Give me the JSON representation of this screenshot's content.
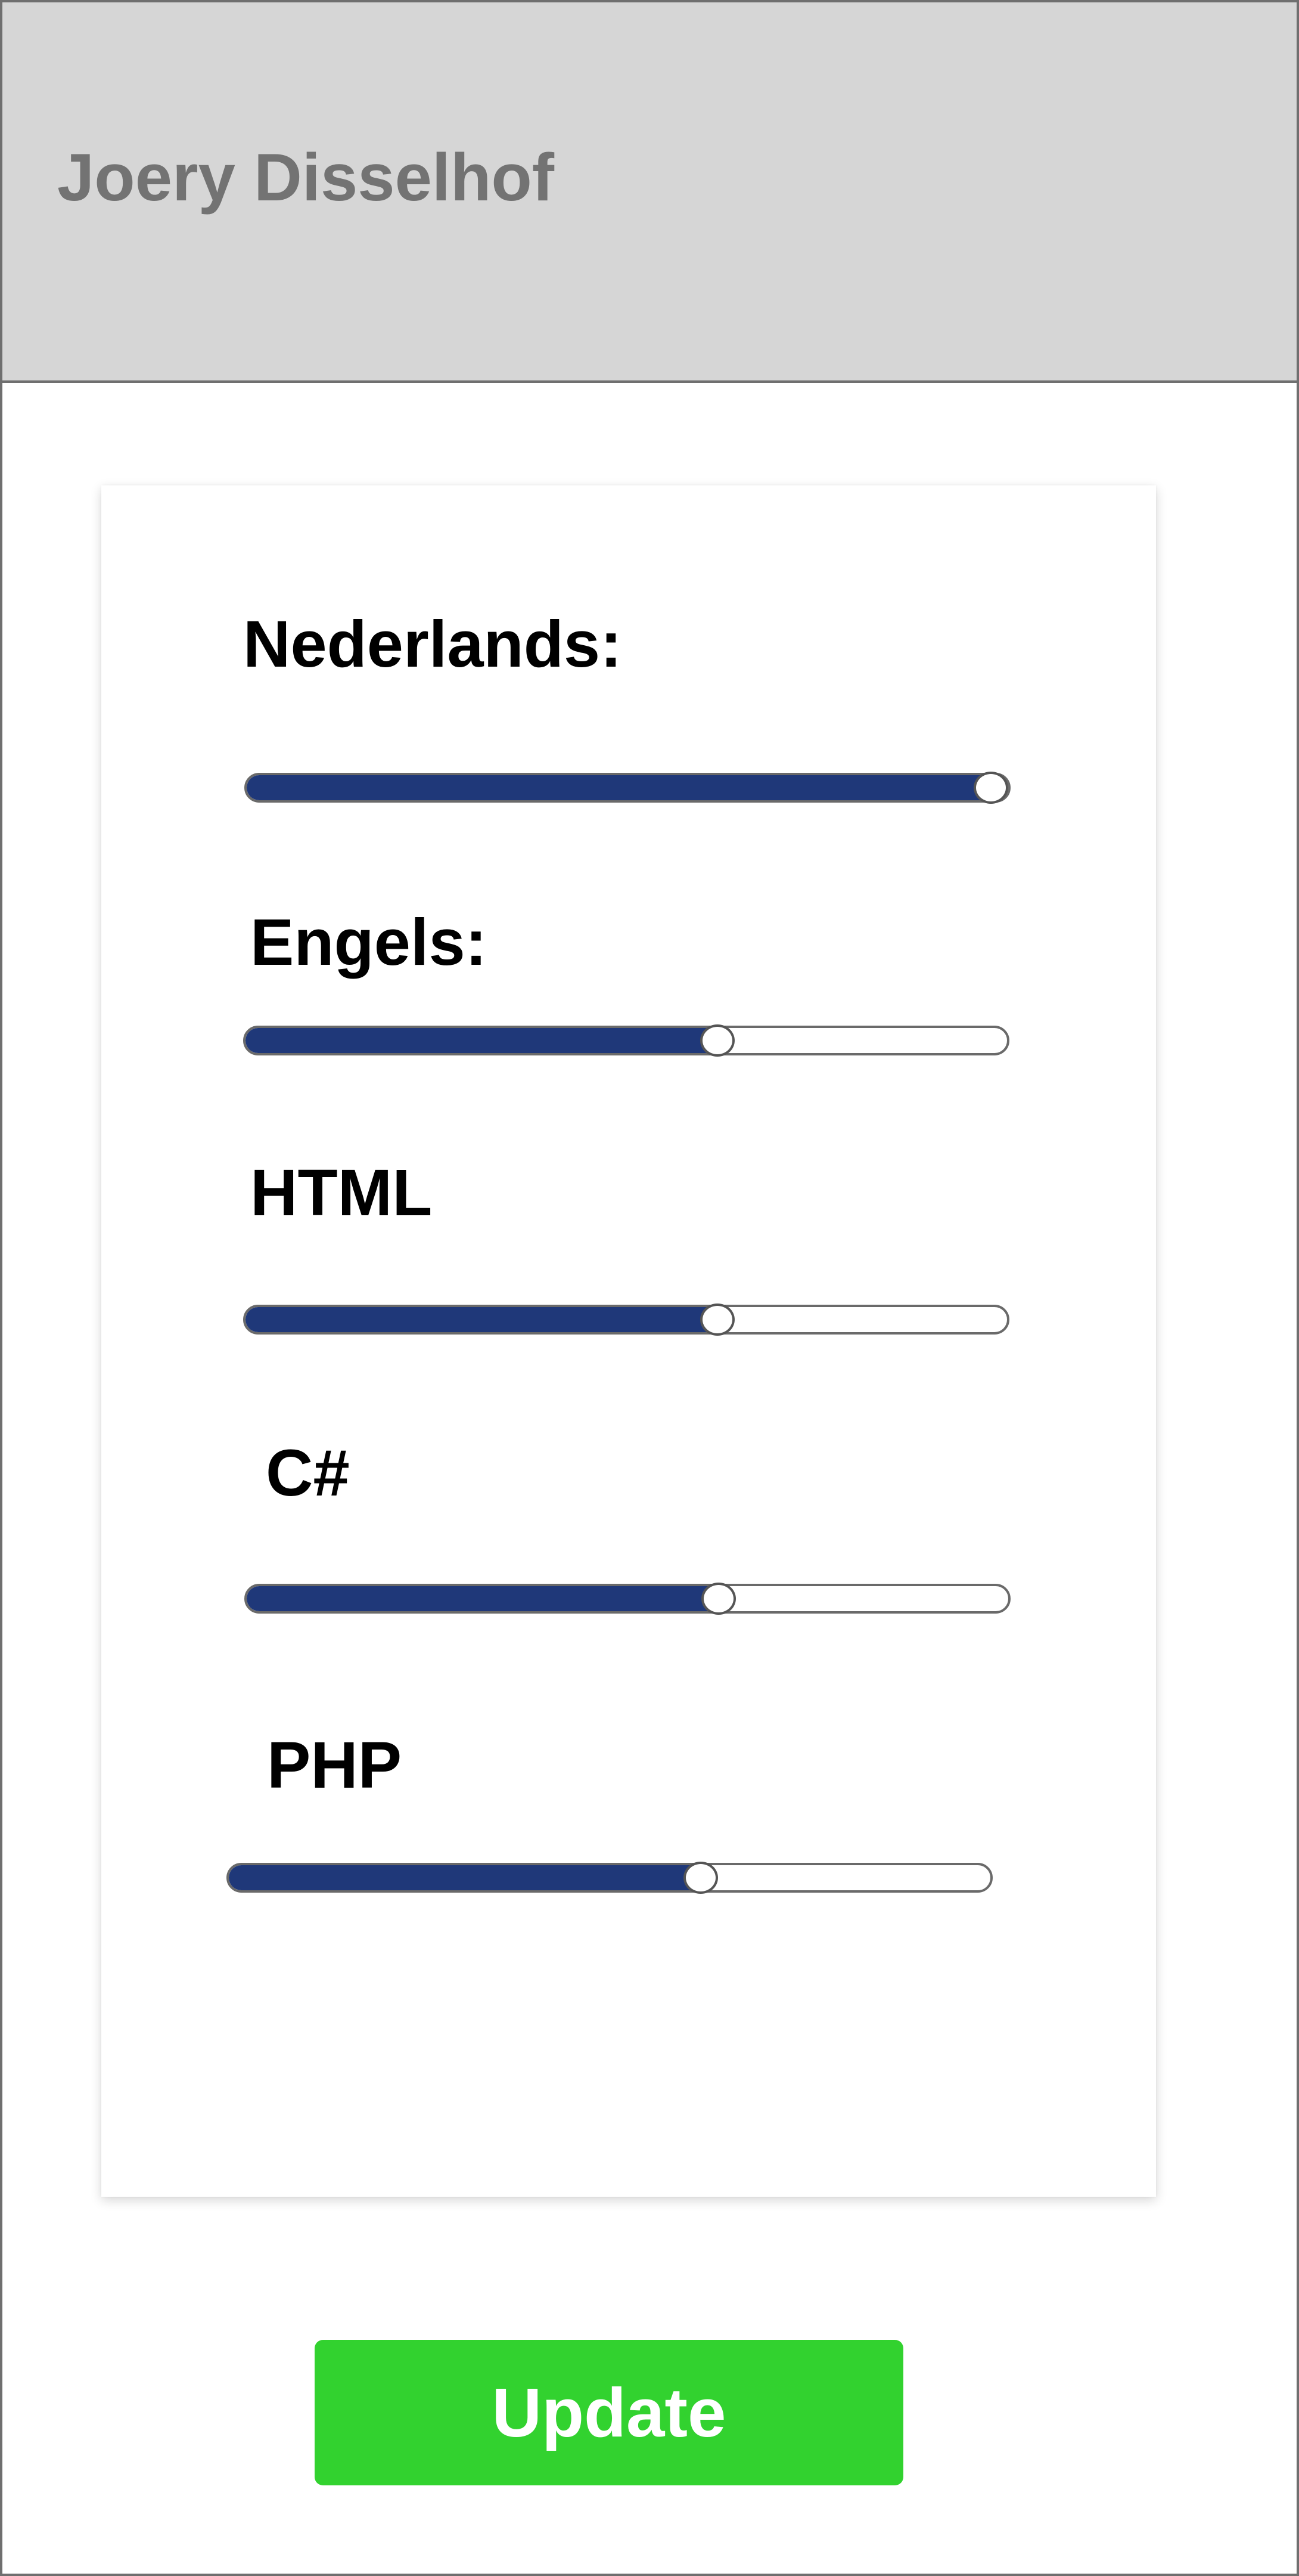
{
  "header": {
    "title": "Joery Disselhof"
  },
  "skills": [
    {
      "label": "Nederlands:",
      "value": 1.0
    },
    {
      "label": "Engels:",
      "value": 0.62
    },
    {
      "label": "HTML",
      "value": 0.62
    },
    {
      "label": "C#",
      "value": 0.62
    },
    {
      "label": "PHP",
      "value": 0.62
    }
  ],
  "actions": {
    "update_label": "Update"
  },
  "colors": {
    "header_bg": "#d6d6d6",
    "slider_fill": "#1f3879",
    "update_button": "#32d22f"
  }
}
